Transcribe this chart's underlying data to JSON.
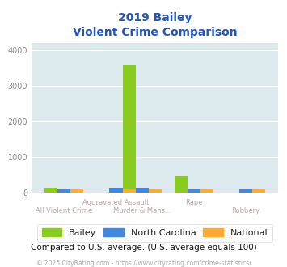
{
  "title_line1": "2019 Bailey",
  "title_line2": "Violent Crime Comparison",
  "bailey": [
    130,
    0,
    3580,
    440,
    0
  ],
  "north_carolina": [
    100,
    130,
    130,
    80,
    110
  ],
  "national": [
    105,
    105,
    105,
    95,
    105
  ],
  "top_labels": [
    "",
    "Aggravated Assault",
    "",
    "Rape",
    ""
  ],
  "bot_labels": [
    "All Violent Crime",
    "",
    "Murder & Mans...",
    "",
    "Robbery"
  ],
  "bar_width": 0.2,
  "colors": {
    "bailey": "#88cc22",
    "north_carolina": "#4488dd",
    "national": "#ffaa33"
  },
  "ylim": [
    0,
    4200
  ],
  "yticks": [
    0,
    1000,
    2000,
    3000,
    4000
  ],
  "background_color": "#ddeaee",
  "grid_color": "#ffffff",
  "title_color": "#2255bb",
  "footer_text": "Compared to U.S. average. (U.S. average equals 100)",
  "copyright_text": "© 2025 CityRating.com - https://www.cityrating.com/crime-statistics/",
  "legend_labels": [
    "Bailey",
    "North Carolina",
    "National"
  ],
  "xlabel_color": "#bbaaaa",
  "ylabel_color": "#888888"
}
